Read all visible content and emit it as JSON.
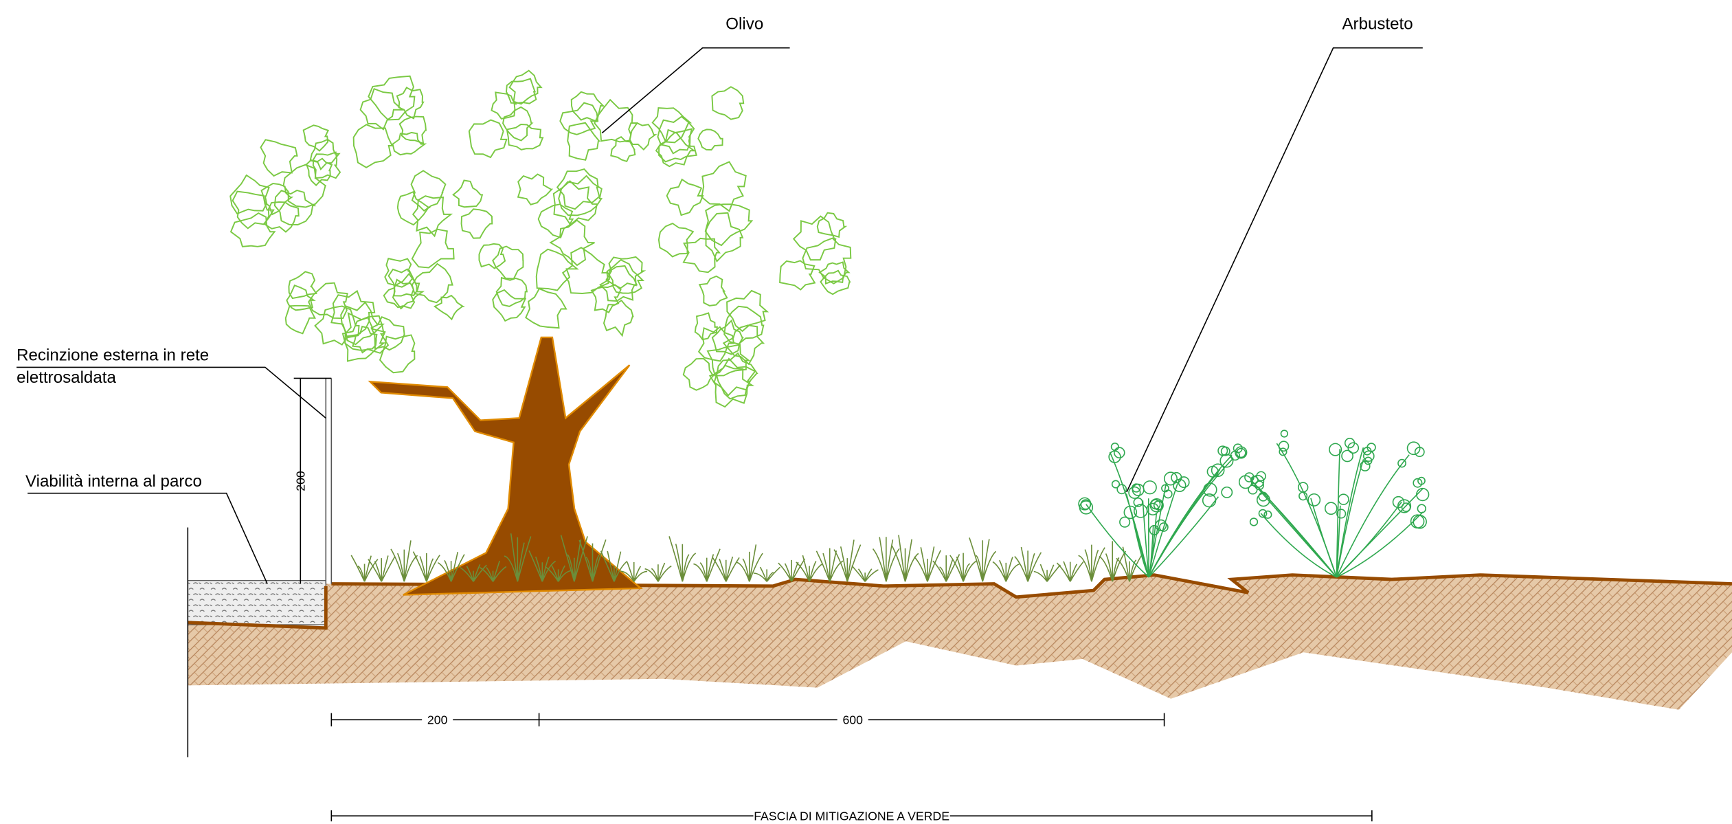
{
  "labels": {
    "olivo": "Olivo",
    "arbusteto": "Arbusteto",
    "recinzione": [
      "Recinzione esterna in rete",
      "elettrosaldata"
    ],
    "viabilita": "Viabilità interna al parco"
  },
  "dimensions": {
    "fence_height": 200,
    "first_span": 200,
    "second_span": 600,
    "band": "FASCIA DI MITIGAZIONE A VERDE"
  }
}
